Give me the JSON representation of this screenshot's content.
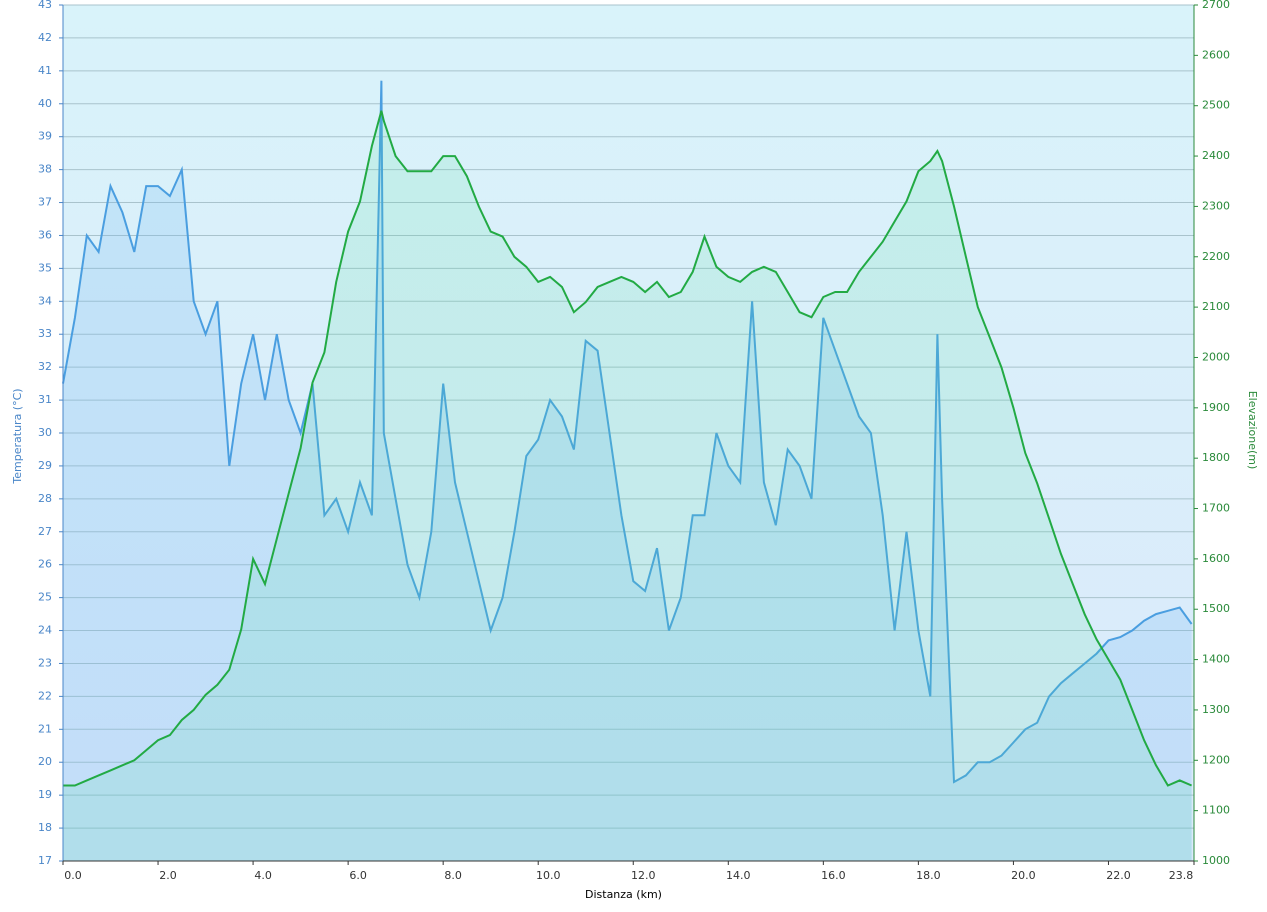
{
  "chart_data": {
    "type": "line",
    "x_label": "Distanza  (km)",
    "y_label": "Temperatura (°C)",
    "y2_label": "Elevazione(m)",
    "x": [
      0,
      0.25,
      0.5,
      0.75,
      1,
      1.25,
      1.5,
      1.75,
      2,
      2.25,
      2.5,
      2.75,
      3,
      3.25,
      3.5,
      3.75,
      4,
      4.25,
      4.5,
      4.75,
      5,
      5.25,
      5.5,
      5.75,
      6,
      6.25,
      6.5,
      6.7,
      6.75,
      7,
      7.25,
      7.5,
      7.75,
      8,
      8.25,
      8.5,
      8.75,
      9,
      9.25,
      9.5,
      9.75,
      10,
      10.25,
      10.5,
      10.75,
      11,
      11.25,
      11.5,
      11.75,
      12,
      12.25,
      12.5,
      12.75,
      13,
      13.25,
      13.5,
      13.75,
      14,
      14.25,
      14.5,
      14.75,
      15,
      15.25,
      15.5,
      15.75,
      16,
      16.25,
      16.5,
      16.75,
      17,
      17.25,
      17.5,
      17.75,
      18,
      18.25,
      18.4,
      18.5,
      18.75,
      19,
      19.25,
      19.5,
      19.75,
      20,
      20.25,
      20.5,
      20.75,
      21,
      21.25,
      21.5,
      21.75,
      22,
      22.25,
      22.5,
      22.75,
      23,
      23.25,
      23.5,
      23.75
    ],
    "series": [
      {
        "name": "Temperatura",
        "color": "#4a9ee0",
        "fill": "rgba(110,180,240,0.22)",
        "values": [
          31.5,
          33.5,
          36,
          35.5,
          37.5,
          36.7,
          35.5,
          37.5,
          37.5,
          37.2,
          38,
          34,
          33,
          34,
          29,
          31.5,
          33,
          31,
          33,
          31,
          30,
          31.5,
          27.5,
          28,
          27,
          28.5,
          27.5,
          40.7,
          30,
          28,
          26,
          25,
          27,
          31.5,
          28.5,
          27,
          25.5,
          24,
          25,
          27,
          29.3,
          29.8,
          31,
          30.5,
          29.5,
          32.8,
          32.5,
          30,
          27.5,
          25.5,
          25.2,
          26.5,
          24,
          25,
          27.5,
          27.5,
          30,
          29,
          28.5,
          34,
          28.5,
          27.2,
          29.5,
          29,
          28,
          33.5,
          32.5,
          31.5,
          30.5,
          30,
          27.5,
          24,
          27,
          24,
          22,
          33,
          28,
          19.4,
          19.6,
          20,
          20,
          20.2,
          20.6,
          21,
          21.2,
          22,
          22.4,
          22.7,
          23,
          23.3,
          23.7,
          23.8,
          24,
          24.3,
          24.5,
          24.6,
          24.7,
          24.2
        ]
      },
      {
        "name": "Elevazione",
        "color": "#22aa44",
        "fill": "rgba(90,225,160,0.16)",
        "axis": "y2",
        "values": [
          1150,
          1150,
          1160,
          1170,
          1180,
          1190,
          1200,
          1220,
          1240,
          1250,
          1280,
          1300,
          1330,
          1350,
          1380,
          1460,
          1600,
          1550,
          1640,
          1730,
          1820,
          1950,
          2010,
          2150,
          2250,
          2310,
          2420,
          2490,
          2470,
          2400,
          2370,
          2370,
          2370,
          2400,
          2400,
          2360,
          2300,
          2250,
          2240,
          2200,
          2180,
          2150,
          2160,
          2140,
          2090,
          2110,
          2140,
          2150,
          2160,
          2150,
          2130,
          2150,
          2120,
          2130,
          2170,
          2240,
          2180,
          2160,
          2150,
          2170,
          2180,
          2170,
          2130,
          2090,
          2080,
          2120,
          2130,
          2130,
          2170,
          2200,
          2230,
          2270,
          2310,
          2370,
          2390,
          2410,
          2390,
          2300,
          2200,
          2100,
          2040,
          1980,
          1900,
          1810,
          1750,
          1680,
          1610,
          1550,
          1490,
          1440,
          1400,
          1360,
          1300,
          1240,
          1190,
          1150,
          1160,
          1150
        ]
      }
    ],
    "xlim": [
      0,
      23.8
    ],
    "xticks": [
      {
        "value": 0,
        "label": "0.0"
      },
      {
        "value": 2,
        "label": "2.0"
      },
      {
        "value": 4,
        "label": "4.0"
      },
      {
        "value": 6,
        "label": "6.0"
      },
      {
        "value": 8,
        "label": "8.0"
      },
      {
        "value": 10,
        "label": "10.0"
      },
      {
        "value": 12,
        "label": "12.0"
      },
      {
        "value": 14,
        "label": "14.0"
      },
      {
        "value": 16,
        "label": "16.0"
      },
      {
        "value": 18,
        "label": "18.0"
      },
      {
        "value": 20,
        "label": "20.0"
      },
      {
        "value": 22,
        "label": "22.0"
      },
      23.8
    ],
    "ylim": [
      17,
      43
    ],
    "yticks": [
      17,
      18,
      19,
      20,
      21,
      22,
      23,
      24,
      25,
      26,
      27,
      28,
      29,
      30,
      31,
      32,
      33,
      34,
      35,
      36,
      37,
      38,
      39,
      40,
      41,
      42,
      43
    ],
    "y2lim": [
      1000,
      2700
    ],
    "y2ticks": [
      1000,
      1100,
      1200,
      1300,
      1400,
      1500,
      1600,
      1700,
      1800,
      1900,
      2000,
      2100,
      2200,
      2300,
      2400,
      2500,
      2600,
      2700
    ],
    "grid": true
  }
}
